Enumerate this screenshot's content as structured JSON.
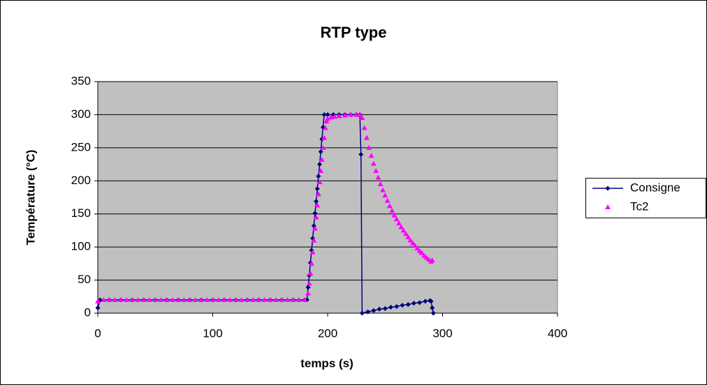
{
  "chart_data": {
    "type": "line",
    "title": "RTP type",
    "x_label": "temps (s)",
    "y_label": "Température (°C)",
    "xlim": [
      0,
      400
    ],
    "xticks": [
      0,
      100,
      200,
      300,
      400
    ],
    "ylim": [
      0,
      350
    ],
    "yticks": [
      0,
      50,
      100,
      150,
      200,
      250,
      300,
      350
    ],
    "grid": true,
    "legend": "right",
    "series": [
      {
        "name": "Consigne",
        "color": "#000080",
        "marker": "diamond",
        "line": true,
        "x": [
          0,
          2,
          10,
          20,
          30,
          40,
          50,
          60,
          70,
          80,
          90,
          100,
          110,
          120,
          130,
          140,
          150,
          160,
          170,
          180,
          182,
          183,
          184,
          185,
          186,
          187,
          188,
          189,
          190,
          191,
          192,
          193,
          194,
          195,
          196,
          197,
          200,
          205,
          210,
          215,
          220,
          225,
          228,
          229,
          230,
          235,
          240,
          245,
          250,
          255,
          260,
          265,
          270,
          275,
          280,
          285,
          289,
          290,
          291,
          292
        ],
        "values": [
          8,
          20,
          20,
          20,
          20,
          20,
          20,
          20,
          20,
          20,
          20,
          20,
          20,
          20,
          20,
          20,
          20,
          20,
          20,
          20,
          20,
          39,
          57,
          76,
          95,
          113,
          132,
          151,
          169,
          188,
          207,
          225,
          244,
          263,
          281,
          300,
          300,
          300,
          300,
          300,
          300,
          300,
          300,
          240,
          0,
          2,
          4,
          6,
          7,
          9,
          10,
          12,
          13,
          15,
          16,
          18,
          19,
          18,
          8,
          0
        ]
      },
      {
        "name": "Tc2",
        "color": "#ff00ff",
        "marker": "triangle",
        "line": false,
        "x": [
          0,
          5,
          10,
          15,
          20,
          25,
          30,
          35,
          40,
          45,
          50,
          55,
          60,
          65,
          70,
          75,
          80,
          85,
          90,
          95,
          100,
          105,
          110,
          115,
          120,
          125,
          130,
          135,
          140,
          145,
          150,
          155,
          160,
          165,
          170,
          175,
          180,
          183,
          184,
          185,
          186,
          187,
          188,
          189,
          190,
          191,
          192,
          193,
          194,
          195,
          196,
          197,
          198,
          199,
          200,
          203,
          206,
          210,
          215,
          220,
          225,
          228,
          230,
          232,
          234,
          236,
          238,
          240,
          242,
          244,
          246,
          248,
          250,
          252,
          254,
          256,
          258,
          260,
          262,
          264,
          266,
          268,
          270,
          272,
          274,
          276,
          278,
          280,
          282,
          284,
          286,
          288,
          290,
          291
        ],
        "values": [
          18,
          20,
          20,
          20,
          20,
          20,
          20,
          20,
          20,
          20,
          20,
          20,
          20,
          20,
          20,
          20,
          20,
          20,
          20,
          20,
          20,
          20,
          20,
          20,
          20,
          20,
          20,
          20,
          20,
          20,
          20,
          20,
          20,
          20,
          20,
          20,
          20,
          30,
          45,
          60,
          75,
          92,
          110,
          128,
          145,
          163,
          180,
          198,
          215,
          232,
          250,
          265,
          280,
          290,
          294,
          296,
          297,
          298,
          299,
          300,
          300,
          300,
          295,
          280,
          265,
          250,
          238,
          226,
          215,
          205,
          195,
          186,
          178,
          170,
          162,
          155,
          148,
          142,
          136,
          130,
          125,
          120,
          115,
          110,
          106,
          102,
          98,
          94,
          91,
          87,
          84,
          81,
          78,
          80
        ]
      }
    ]
  }
}
